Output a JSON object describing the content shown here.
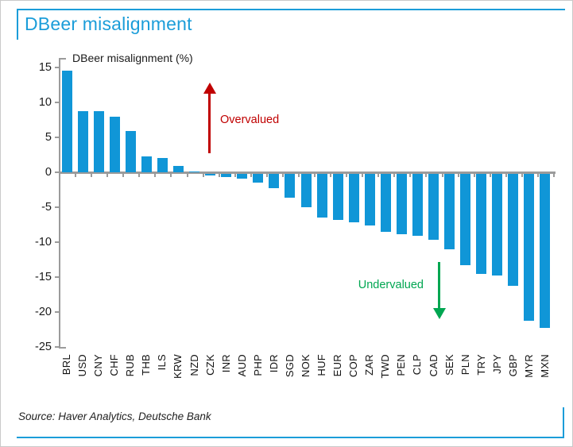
{
  "page": {
    "header": {
      "title": "DBeer misalignment"
    },
    "source": "Source: Haver Analytics, Deutsche Bank",
    "accent_blue": "#1B9DD9"
  },
  "chart_data": {
    "type": "bar",
    "title": "DBeer misalignment (%)",
    "categories": [
      "BRL",
      "USD",
      "CNY",
      "CHF",
      "RUB",
      "THB",
      "ILS",
      "KRW",
      "NZD",
      "CZK",
      "INR",
      "AUD",
      "PHP",
      "IDR",
      "SGD",
      "NOK",
      "HUF",
      "EUR",
      "COP",
      "ZAR",
      "TWD",
      "PEN",
      "CLP",
      "CAD",
      "SEK",
      "PLN",
      "TRY",
      "JPY",
      "GBP",
      "MYR",
      "MXN"
    ],
    "values": [
      14.5,
      8.8,
      8.7,
      7.9,
      5.9,
      2.3,
      2.0,
      0.9,
      0.1,
      -0.2,
      -0.5,
      -0.7,
      -1.2,
      -2.0,
      -3.4,
      -4.8,
      -6.2,
      -6.6,
      -6.9,
      -7.4,
      -8.3,
      -8.6,
      -8.9,
      -9.4,
      -10.8,
      -13.1,
      -14.3,
      -14.6,
      -16.0,
      -21.0,
      -22.0
    ],
    "ylabel": "",
    "xlabel": "",
    "ylim": [
      -25,
      15
    ],
    "yticks": [
      15,
      10,
      5,
      0,
      -5,
      -10,
      -15,
      -20,
      -25
    ],
    "grid": false,
    "legend": "none",
    "bar_color": "#1096D7",
    "axis_color": "#9B9B9B",
    "annotations": [
      {
        "text": "Overvalued",
        "color": "#C00000",
        "direction": "up"
      },
      {
        "text": "Undervalued",
        "color": "#00A651",
        "direction": "down"
      }
    ]
  }
}
